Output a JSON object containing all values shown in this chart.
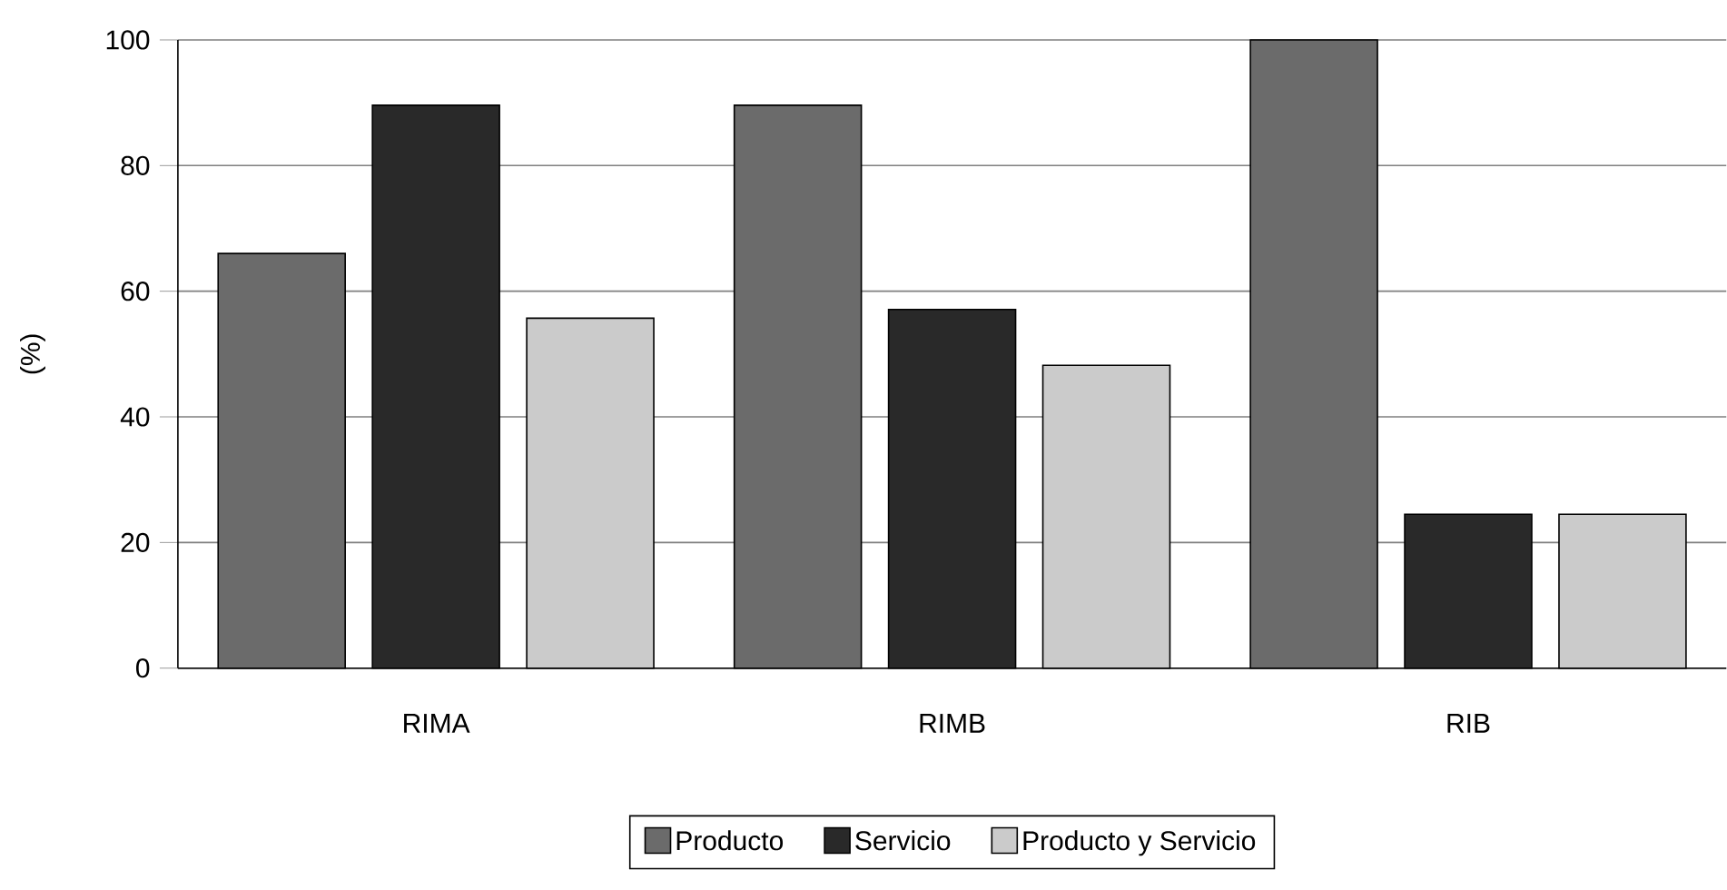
{
  "chart_data": {
    "type": "bar",
    "ylabel": "(%)",
    "categories": [
      "RIMA",
      "RIMB",
      "RIB"
    ],
    "series": [
      {
        "name": "Producto",
        "color": "#6b6b6b",
        "values": [
          66,
          89.6,
          100
        ]
      },
      {
        "name": "Servicio",
        "color": "#292929",
        "values": [
          89.6,
          57.1,
          24.5
        ]
      },
      {
        "name": "Producto y Servicio",
        "color": "#cbcbcb",
        "values": [
          55.7,
          48.2,
          24.5
        ]
      }
    ],
    "ylim": [
      0,
      100
    ],
    "yticks": [
      0,
      20,
      40,
      60,
      80,
      100
    ],
    "grid": "y",
    "legend": "bottom"
  }
}
